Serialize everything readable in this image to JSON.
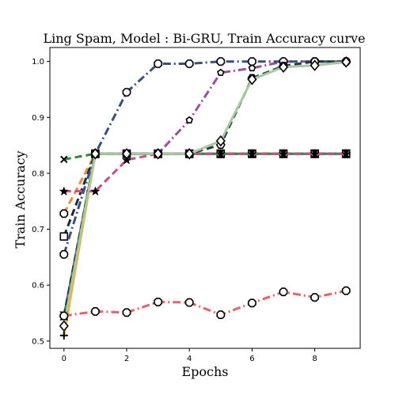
{
  "chart_data": {
    "type": "line",
    "title": "Ling Spam, Model : Bi-GRU, Train Accuracy curve",
    "xlabel": "Epochs",
    "ylabel": "Train Accuracy",
    "xlim": [
      -0.45,
      9.45
    ],
    "ylim": [
      0.487,
      1.025
    ],
    "xticks": [
      0,
      2,
      4,
      6,
      8
    ],
    "yticks": [
      0.5,
      0.6,
      0.7,
      0.8,
      0.9,
      1.0
    ],
    "ytick_labels": [
      "0.5",
      "0.6",
      "0.7",
      "0.8",
      "0.9",
      "1.0"
    ],
    "grid": false,
    "x": [
      0,
      1,
      2,
      3,
      4,
      5,
      6,
      7,
      8,
      9
    ],
    "series": [
      {
        "color": "#ee8a3a",
        "dash": "9,5",
        "marker": "octagon",
        "values": [
          0.728,
          0.835,
          0.835,
          0.835,
          0.835,
          0.835,
          0.835,
          0.835,
          0.835,
          0.835
        ]
      },
      {
        "color": "#f0b429",
        "dash": "",
        "marker": "plus",
        "values": [
          0.51,
          0.835,
          0.835,
          0.835,
          0.835,
          0.835,
          0.835,
          0.835,
          0.835,
          0.835
        ]
      },
      {
        "color": "#2f8a2f",
        "dash": "9,5",
        "marker": "x",
        "values": [
          0.825,
          0.835,
          0.835,
          0.835,
          0.835,
          0.835,
          0.835,
          0.835,
          0.835,
          0.835
        ]
      },
      {
        "color": "#1a2a3a",
        "dash": "9,5",
        "marker": "square",
        "values": [
          0.687,
          0.835,
          0.835,
          0.835,
          0.835,
          0.835,
          0.835,
          0.835,
          0.835,
          0.835
        ]
      },
      {
        "color": "#2e8b57",
        "dash": "",
        "marker": "hourglass",
        "values": [
          0.545,
          0.835,
          0.835,
          0.835,
          0.835,
          0.835,
          0.835,
          0.835,
          0.835,
          0.835
        ]
      },
      {
        "color": "#c94f86",
        "dash": "9,5",
        "marker": "star",
        "values": [
          0.768,
          0.768,
          0.824,
          0.835,
          0.835,
          0.835,
          0.835,
          0.835,
          0.835,
          0.835
        ]
      },
      {
        "color": "#9b4e9e",
        "dash": "10,4,2,4",
        "marker": "pentagon",
        "values": [
          0.545,
          0.835,
          0.835,
          0.835,
          0.895,
          0.98,
          0.988,
          1.0,
          1.0,
          1.0
        ]
      },
      {
        "color": "#3a4f7a",
        "dash": "10,4,2,4",
        "marker": "octagon",
        "values": [
          0.655,
          0.835,
          0.945,
          0.996,
          0.996,
          1.0,
          1.0,
          1.0,
          1.0,
          1.0
        ]
      },
      {
        "color": "#1e3c48",
        "dash": "9,5",
        "marker": "hexagon",
        "values": [
          0.545,
          0.835,
          0.835,
          0.835,
          0.835,
          0.851,
          0.97,
          0.992,
          1.0,
          1.0
        ]
      },
      {
        "color": "#a8c8a0",
        "dash": "",
        "marker": "diamond",
        "values": [
          0.527,
          0.835,
          0.835,
          0.835,
          0.835,
          0.858,
          0.968,
          0.99,
          0.993,
          0.999
        ]
      },
      {
        "color": "#e8606a",
        "dash": "10,4,2,4",
        "marker": "octagon",
        "values": [
          0.545,
          0.553,
          0.551,
          0.57,
          0.569,
          0.547,
          0.568,
          0.588,
          0.578,
          0.59
        ]
      }
    ]
  }
}
